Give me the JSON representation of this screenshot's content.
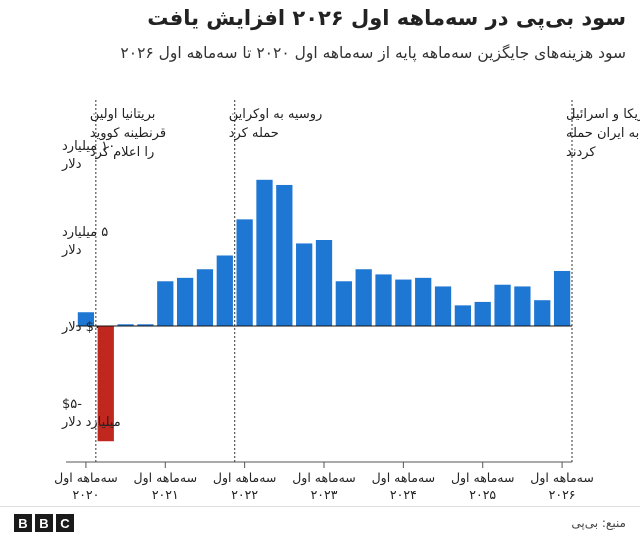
{
  "header": {
    "title": "سود بی‌پی در سه‌ماهه اول ۲۰۲۶ افزایش یافت",
    "subtitle": "سود هزینه‌های جایگزین سه‌ماهه پایه از سه‌ماهه اول ۲۰۲۰ تا سه‌ماهه اول ۲۰۲۶"
  },
  "footer": {
    "source": "منبع: بی‌پی",
    "logo": [
      "B",
      "B",
      "C"
    ]
  },
  "colors": {
    "bar": "#1f77d4",
    "negative_bar": "#c0271e",
    "annotation_line": "#333333",
    "baseline": "#111111"
  },
  "chart_data": {
    "type": "bar",
    "title": "سود بی‌پی در سه‌ماهه اول ۲۰۲۶ افزایش یافت",
    "subtitle": "سود هزینه‌های جایگزین سه‌ماهه پایه از سه‌ماهه اول ۲۰۲۰ تا سه‌ماهه اول ۲۰۲۶",
    "unit": "میلیارد دلار",
    "ylim": [
      -6.5,
      10
    ],
    "yticks": [
      {
        "value": 10,
        "label": [
          "۱۰ میلیارد",
          "دلار"
        ]
      },
      {
        "value": 5,
        "label": [
          "۵ میلیارد",
          "دلار"
        ]
      },
      {
        "value": 0,
        "label": [
          "$۰ دلار"
        ]
      },
      {
        "value": -5,
        "label": [
          "-$۵",
          "میلیارد دلار"
        ]
      }
    ],
    "categories": [
      "Q1 2020",
      "Q2 2020",
      "Q3 2020",
      "Q4 2020",
      "Q1 2021",
      "Q2 2021",
      "Q3 2021",
      "Q4 2021",
      "Q1 2022",
      "Q2 2022",
      "Q3 2022",
      "Q4 2022",
      "Q1 2023",
      "Q2 2023",
      "Q3 2023",
      "Q4 2023",
      "Q1 2024",
      "Q2 2024",
      "Q3 2024",
      "Q4 2024",
      "Q1 2025",
      "Q2 2025",
      "Q3 2025",
      "Q4 2025",
      "Q1 2026"
    ],
    "values": [
      0.8,
      -6.7,
      0.1,
      0.1,
      2.6,
      2.8,
      3.3,
      4.1,
      6.2,
      8.5,
      8.2,
      4.8,
      5.0,
      2.6,
      3.3,
      3.0,
      2.7,
      2.8,
      2.3,
      1.2,
      1.4,
      2.4,
      2.3,
      1.5,
      3.2
    ],
    "xticks": [
      {
        "index": 0,
        "label": [
          "سه‌ماهه اول",
          "۲۰۲۰"
        ]
      },
      {
        "index": 4,
        "label": [
          "سه‌ماهه اول",
          "۲۰۲۱"
        ]
      },
      {
        "index": 8,
        "label": [
          "سه‌ماهه اول",
          "۲۰۲۲"
        ]
      },
      {
        "index": 12,
        "label": [
          "سه‌ماهه اول",
          "۲۰۲۳"
        ]
      },
      {
        "index": 16,
        "label": [
          "سه‌ماهه اول",
          "۲۰۲۴"
        ]
      },
      {
        "index": 20,
        "label": [
          "سه‌ماهه اول",
          "۲۰۲۵"
        ]
      },
      {
        "index": 24,
        "label": [
          "سه‌ماهه اول",
          "۲۰۲۶"
        ]
      }
    ],
    "annotations": [
      {
        "after_index": 0,
        "lines": [
          "بریتانیا اولین",
          "قرنطینه کووید",
          "را اعلام کرد"
        ]
      },
      {
        "after_index": 7,
        "lines": [
          "روسیه به اوکراین",
          "حمله کرد"
        ]
      },
      {
        "after_index": 24,
        "lines": [
          "آمریکا و اسرائیل",
          "به ایران حمله",
          "کردند"
        ]
      }
    ],
    "grid": false,
    "legend": "none"
  }
}
